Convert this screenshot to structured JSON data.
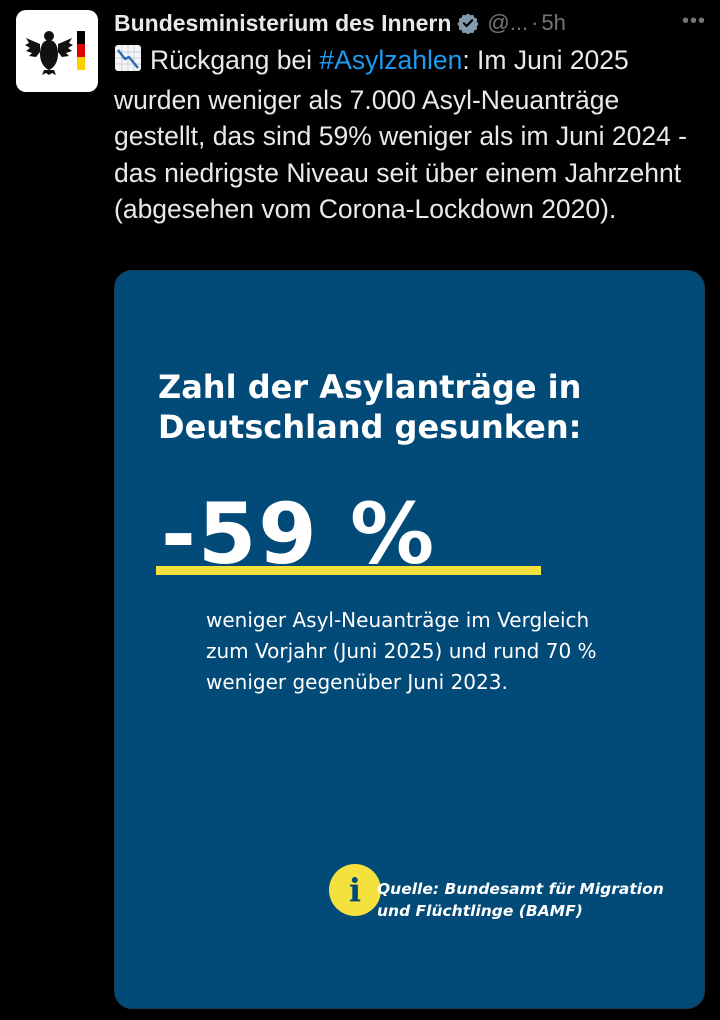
{
  "account": {
    "display_name": "Bundesministerium des Innern",
    "handle": "@...",
    "separator": "·",
    "time": "5h",
    "more_label": "•••",
    "avatar_icon": "federal-eagle-icon",
    "verified_icon": "verified-badge-icon"
  },
  "tweet": {
    "emoji_icon": "chart-decreasing-icon",
    "text_before": "Rückgang bei ",
    "hashtag": "#Asylzahlen",
    "text_after": ": Im Juni 2025 wurden weniger als 7.000 Asyl-Neuanträge gestellt, das sind 59% weniger als im Juni 2024 - das niedrigste Niveau seit über einem Jahrzehnt (abgesehen vom Corona-Lockdown 2020)."
  },
  "card": {
    "heading": "Zahl der Asylanträge in Deutschland gesunken:",
    "big_number": "-59 %",
    "description": "weniger Asyl-Neuanträge im Vergleich zum Vorjahr (Juni 2025) und rund 70 % weniger gegenüber Juni 2023.",
    "info_symbol": "i",
    "source": "Quelle: Bundesamt für Migration und Flüchtlinge (BAMF)"
  },
  "colors": {
    "background": "#000000",
    "text": "#e7e9ea",
    "muted": "#71767b",
    "link": "#1d9bf0",
    "card_bg": "#024a78",
    "accent_yellow": "#f4e13e",
    "verified": "#829aab"
  }
}
